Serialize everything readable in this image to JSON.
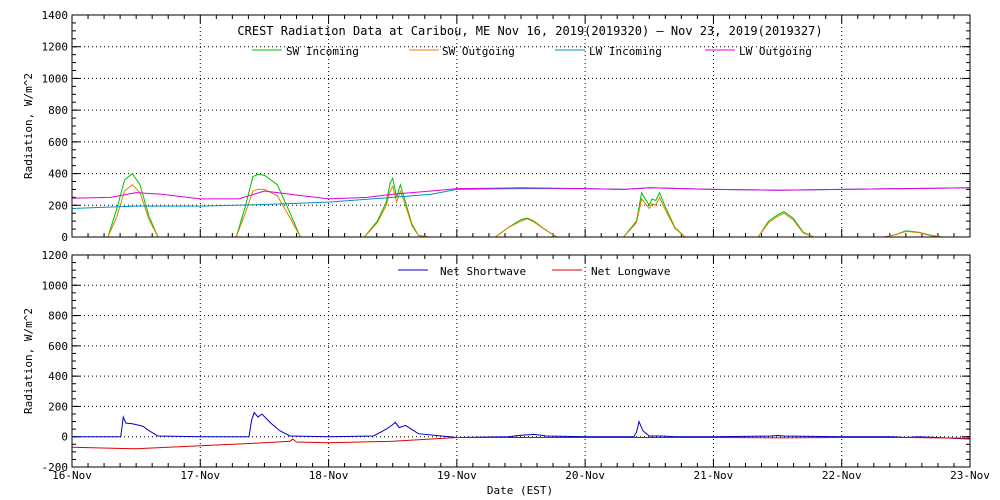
{
  "chart_data": [
    {
      "type": "line",
      "title": "CREST Radiation Data at Caribou, ME   Nov 16, 2019(2019320) — Nov 23, 2019(2019327)",
      "xlabel": "",
      "ylabel": "Radiation, W/m^2",
      "xlim": [
        0,
        7
      ],
      "ylim": [
        0,
        1400
      ],
      "yticks": [
        0,
        200,
        400,
        600,
        800,
        1000,
        1200,
        1400
      ],
      "grid": true,
      "legend": "top",
      "series": [
        {
          "name": "SW Incoming",
          "color": "#00c000",
          "x": [
            0,
            0.28,
            0.35,
            0.41,
            0.47,
            0.53,
            0.6,
            0.67,
            0.78,
            1.0,
            1.28,
            1.35,
            1.41,
            1.45,
            1.5,
            1.6,
            1.7,
            1.78,
            2.0,
            2.28,
            2.38,
            2.45,
            2.48,
            2.5,
            2.53,
            2.56,
            2.6,
            2.65,
            2.7,
            2.78,
            3.0,
            3.3,
            3.4,
            3.5,
            3.55,
            3.6,
            3.7,
            3.78,
            4.0,
            4.3,
            4.4,
            4.44,
            4.46,
            4.5,
            4.52,
            4.55,
            4.58,
            4.62,
            4.7,
            4.78,
            5.0,
            5.35,
            5.43,
            5.5,
            5.55,
            5.62,
            5.7,
            5.78,
            6.0,
            6.33,
            6.42,
            6.5,
            6.6,
            6.7,
            6.78,
            7.0
          ],
          "y": [
            0,
            0,
            180,
            360,
            400,
            330,
            130,
            0,
            0,
            0,
            0,
            190,
            380,
            395,
            390,
            330,
            150,
            0,
            0,
            0,
            100,
            220,
            340,
            370,
            250,
            330,
            220,
            80,
            10,
            0,
            0,
            0,
            60,
            110,
            120,
            100,
            40,
            0,
            0,
            0,
            100,
            280,
            250,
            200,
            240,
            230,
            280,
            200,
            60,
            0,
            0,
            0,
            100,
            140,
            160,
            120,
            30,
            0,
            0,
            0,
            15,
            40,
            30,
            10,
            0,
            0
          ]
        },
        {
          "name": "SW Outgoing",
          "color": "#e08000",
          "x": [
            0,
            0.28,
            0.35,
            0.41,
            0.47,
            0.53,
            0.6,
            0.67,
            0.78,
            1.0,
            1.28,
            1.35,
            1.41,
            1.45,
            1.5,
            1.6,
            1.7,
            1.78,
            2.0,
            2.28,
            2.38,
            2.45,
            2.48,
            2.5,
            2.53,
            2.56,
            2.6,
            2.65,
            2.7,
            2.78,
            3.0,
            3.3,
            3.4,
            3.5,
            3.55,
            3.6,
            3.7,
            3.78,
            4.0,
            4.3,
            4.4,
            4.44,
            4.46,
            4.5,
            4.52,
            4.55,
            4.58,
            4.62,
            4.7,
            4.78,
            5.0,
            5.35,
            5.43,
            5.5,
            5.55,
            5.62,
            5.7,
            5.78,
            6.0,
            6.33,
            6.42,
            6.5,
            6.6,
            6.7,
            6.78,
            7.0
          ],
          "y": [
            0,
            0,
            130,
            290,
            330,
            280,
            110,
            0,
            0,
            0,
            0,
            150,
            290,
            300,
            300,
            260,
            120,
            0,
            0,
            0,
            90,
            200,
            290,
            320,
            220,
            290,
            200,
            70,
            10,
            0,
            0,
            0,
            60,
            100,
            115,
            95,
            40,
            0,
            0,
            0,
            90,
            240,
            220,
            180,
            210,
            200,
            250,
            180,
            55,
            0,
            0,
            0,
            90,
            130,
            150,
            110,
            25,
            0,
            0,
            0,
            15,
            35,
            28,
            8,
            0,
            0
          ]
        },
        {
          "name": "LW Incoming",
          "color": "#0090c0",
          "x": [
            0,
            0.5,
            1.0,
            1.5,
            2.0,
            2.5,
            2.8,
            3.0,
            3.5,
            4.0,
            4.3,
            4.5,
            5.0,
            5.5,
            6.0,
            6.5,
            7.0
          ],
          "y": [
            180,
            195,
            195,
            205,
            220,
            250,
            270,
            300,
            305,
            305,
            300,
            310,
            300,
            295,
            300,
            305,
            310
          ]
        },
        {
          "name": "LW Outgoing",
          "color": "#e000e0",
          "x": [
            0,
            0.3,
            0.5,
            0.7,
            1.0,
            1.3,
            1.5,
            1.7,
            2.0,
            2.3,
            2.5,
            2.8,
            3.0,
            3.5,
            4.0,
            4.3,
            4.5,
            5.0,
            5.5,
            6.0,
            6.5,
            7.0
          ],
          "y": [
            245,
            250,
            280,
            270,
            240,
            240,
            290,
            270,
            240,
            250,
            270,
            290,
            305,
            310,
            305,
            300,
            310,
            300,
            295,
            300,
            305,
            310
          ]
        }
      ]
    },
    {
      "type": "line",
      "title": "",
      "xlabel": "Date (EST)",
      "ylabel": "Radiation, W/m^2",
      "xlim": [
        0,
        7
      ],
      "ylim": [
        -200,
        1200
      ],
      "yticks": [
        -200,
        0,
        200,
        400,
        600,
        800,
        1000,
        1200
      ],
      "categories": [
        "16-Nov",
        "17-Nov",
        "18-Nov",
        "19-Nov",
        "20-Nov",
        "21-Nov",
        "22-Nov",
        "23-Nov"
      ],
      "grid": true,
      "legend": "top",
      "series": [
        {
          "name": "Net Shortwave",
          "color": "#0000c0",
          "x": [
            0,
            0.38,
            0.4,
            0.42,
            0.47,
            0.55,
            0.6,
            0.67,
            1.0,
            1.38,
            1.4,
            1.42,
            1.45,
            1.48,
            1.55,
            1.62,
            1.7,
            2.0,
            2.35,
            2.45,
            2.5,
            2.52,
            2.55,
            2.6,
            2.7,
            3.0,
            3.4,
            3.5,
            3.6,
            3.7,
            4.0,
            4.38,
            4.4,
            4.42,
            4.45,
            4.5,
            4.6,
            4.7,
            5.0,
            5.45,
            5.5,
            5.55,
            6.0,
            6.4,
            6.5,
            6.6,
            7.0
          ],
          "y": [
            0,
            0,
            130,
            90,
            85,
            70,
            40,
            5,
            0,
            0,
            110,
            160,
            130,
            150,
            90,
            40,
            5,
            0,
            5,
            50,
            80,
            95,
            60,
            75,
            20,
            -5,
            0,
            10,
            15,
            5,
            0,
            0,
            30,
            100,
            40,
            5,
            5,
            0,
            0,
            5,
            8,
            5,
            0,
            0,
            -5,
            0,
            -15
          ]
        },
        {
          "name": "Net Longwave",
          "color": "#e00000",
          "x": [
            0,
            0.5,
            1.0,
            1.5,
            1.7,
            1.72,
            1.75,
            2.0,
            2.5,
            2.8,
            3.0,
            3.5,
            4.0,
            4.5,
            5.0,
            5.5,
            6.0,
            6.5,
            7.0
          ],
          "y": [
            -70,
            -80,
            -60,
            -40,
            -30,
            -15,
            -35,
            -40,
            -30,
            -15,
            -5,
            -5,
            -5,
            -5,
            -5,
            -8,
            -5,
            -5,
            -10
          ]
        }
      ]
    }
  ]
}
